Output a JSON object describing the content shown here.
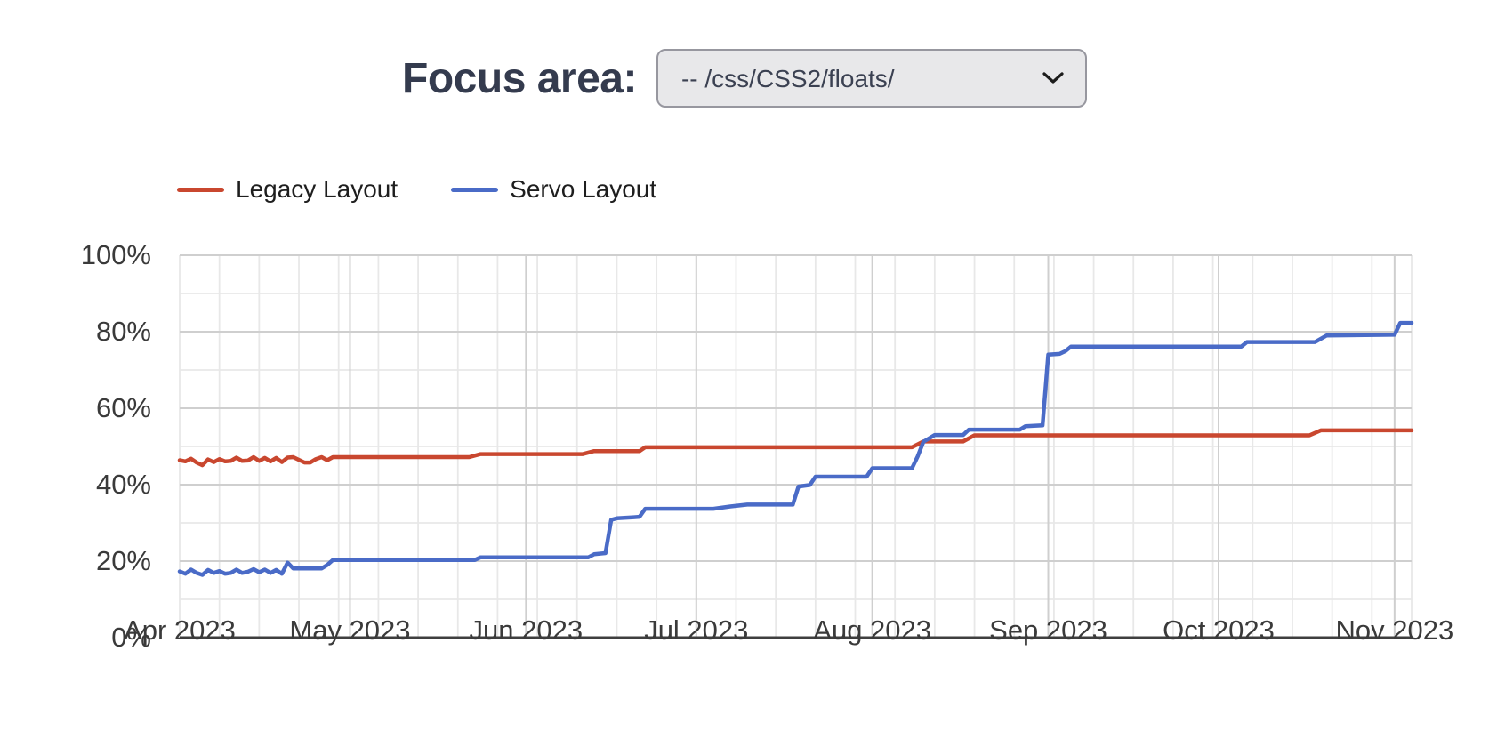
{
  "focus_area": {
    "label": "Focus area:",
    "selected_option": "-- /css/CSS2/floats/"
  },
  "legend": [
    {
      "label": "Legacy Layout",
      "color": "#c9472f"
    },
    {
      "label": "Servo Layout",
      "color": "#4a6bc7"
    }
  ],
  "chart_data": {
    "type": "line",
    "title": "",
    "xlabel": "",
    "ylabel": "",
    "x_unit": "days since Apr 1 2023",
    "x_range_days": [
      0,
      217
    ],
    "x_minor_step_days": 7,
    "ylim": [
      0,
      100
    ],
    "y_minor_step": 10,
    "grid": true,
    "legend_position": "top-left",
    "x_ticks": [
      {
        "day": 0,
        "label": "Apr 2023"
      },
      {
        "day": 30,
        "label": "May 2023"
      },
      {
        "day": 61,
        "label": "Jun 2023"
      },
      {
        "day": 91,
        "label": "Jul 2023"
      },
      {
        "day": 122,
        "label": "Aug 2023"
      },
      {
        "day": 153,
        "label": "Sep 2023"
      },
      {
        "day": 183,
        "label": "Oct 2023"
      },
      {
        "day": 214,
        "label": "Nov 2023"
      }
    ],
    "y_ticks": [
      {
        "value": 0,
        "label": "0%"
      },
      {
        "value": 20,
        "label": "20%"
      },
      {
        "value": 40,
        "label": "40%"
      },
      {
        "value": 60,
        "label": "60%"
      },
      {
        "value": 80,
        "label": "80%"
      },
      {
        "value": 100,
        "label": "100%"
      }
    ],
    "series": [
      {
        "name": "Legacy Layout",
        "color": "#c9472f",
        "points": [
          [
            0,
            46.4
          ],
          [
            1,
            46.1
          ],
          [
            2,
            46.8
          ],
          [
            3,
            45.8
          ],
          [
            4,
            45.1
          ],
          [
            5,
            46.6
          ],
          [
            6,
            45.9
          ],
          [
            7,
            46.7
          ],
          [
            8,
            46.1
          ],
          [
            9,
            46.2
          ],
          [
            10,
            47.1
          ],
          [
            11,
            46.2
          ],
          [
            12,
            46.3
          ],
          [
            13,
            47.2
          ],
          [
            14,
            46.2
          ],
          [
            15,
            47.0
          ],
          [
            16,
            46.1
          ],
          [
            17,
            47.0
          ],
          [
            18,
            45.9
          ],
          [
            19,
            47.1
          ],
          [
            20,
            47.2
          ],
          [
            22,
            45.8
          ],
          [
            23,
            45.8
          ],
          [
            24,
            46.7
          ],
          [
            25,
            47.2
          ],
          [
            26,
            46.4
          ],
          [
            27,
            47.2
          ],
          [
            51,
            47.2
          ],
          [
            53,
            48.0
          ],
          [
            71,
            48.0
          ],
          [
            73,
            48.8
          ],
          [
            81,
            48.8
          ],
          [
            82,
            49.8
          ],
          [
            129,
            49.8
          ],
          [
            131,
            51.3
          ],
          [
            138,
            51.3
          ],
          [
            140,
            52.9
          ],
          [
            199,
            52.9
          ],
          [
            201,
            54.2
          ],
          [
            217,
            54.2
          ]
        ]
      },
      {
        "name": "Servo Layout",
        "color": "#4a6bc7",
        "points": [
          [
            0,
            17.3
          ],
          [
            1,
            16.7
          ],
          [
            2,
            17.8
          ],
          [
            3,
            16.9
          ],
          [
            4,
            16.4
          ],
          [
            5,
            17.7
          ],
          [
            6,
            16.9
          ],
          [
            7,
            17.4
          ],
          [
            8,
            16.7
          ],
          [
            9,
            16.9
          ],
          [
            10,
            17.8
          ],
          [
            11,
            16.9
          ],
          [
            12,
            17.2
          ],
          [
            13,
            17.9
          ],
          [
            14,
            17.1
          ],
          [
            15,
            17.8
          ],
          [
            16,
            16.9
          ],
          [
            17,
            17.7
          ],
          [
            18,
            16.7
          ],
          [
            19,
            19.6
          ],
          [
            20,
            18.1
          ],
          [
            25,
            18.1
          ],
          [
            26,
            19.0
          ],
          [
            27,
            20.3
          ],
          [
            52,
            20.3
          ],
          [
            53,
            21.0
          ],
          [
            72,
            21.0
          ],
          [
            73,
            21.8
          ],
          [
            75,
            22.1
          ],
          [
            76,
            30.8
          ],
          [
            77,
            31.2
          ],
          [
            80,
            31.5
          ],
          [
            81,
            31.6
          ],
          [
            82,
            33.7
          ],
          [
            94,
            33.7
          ],
          [
            97,
            34.3
          ],
          [
            100,
            34.8
          ],
          [
            108,
            34.8
          ],
          [
            109,
            39.5
          ],
          [
            111,
            39.9
          ],
          [
            112,
            42.1
          ],
          [
            121,
            42.1
          ],
          [
            122,
            44.3
          ],
          [
            129,
            44.3
          ],
          [
            130,
            47.4
          ],
          [
            131,
            51.2
          ],
          [
            133,
            53.0
          ],
          [
            138,
            53.0
          ],
          [
            139,
            54.4
          ],
          [
            148,
            54.4
          ],
          [
            149,
            55.3
          ],
          [
            152,
            55.5
          ],
          [
            153,
            74.0
          ],
          [
            155,
            74.2
          ],
          [
            156,
            74.9
          ],
          [
            157,
            76.1
          ],
          [
            187,
            76.1
          ],
          [
            188,
            77.3
          ],
          [
            200,
            77.3
          ],
          [
            202,
            79.0
          ],
          [
            214,
            79.2
          ],
          [
            215,
            82.3
          ],
          [
            217,
            82.3
          ]
        ]
      }
    ]
  }
}
